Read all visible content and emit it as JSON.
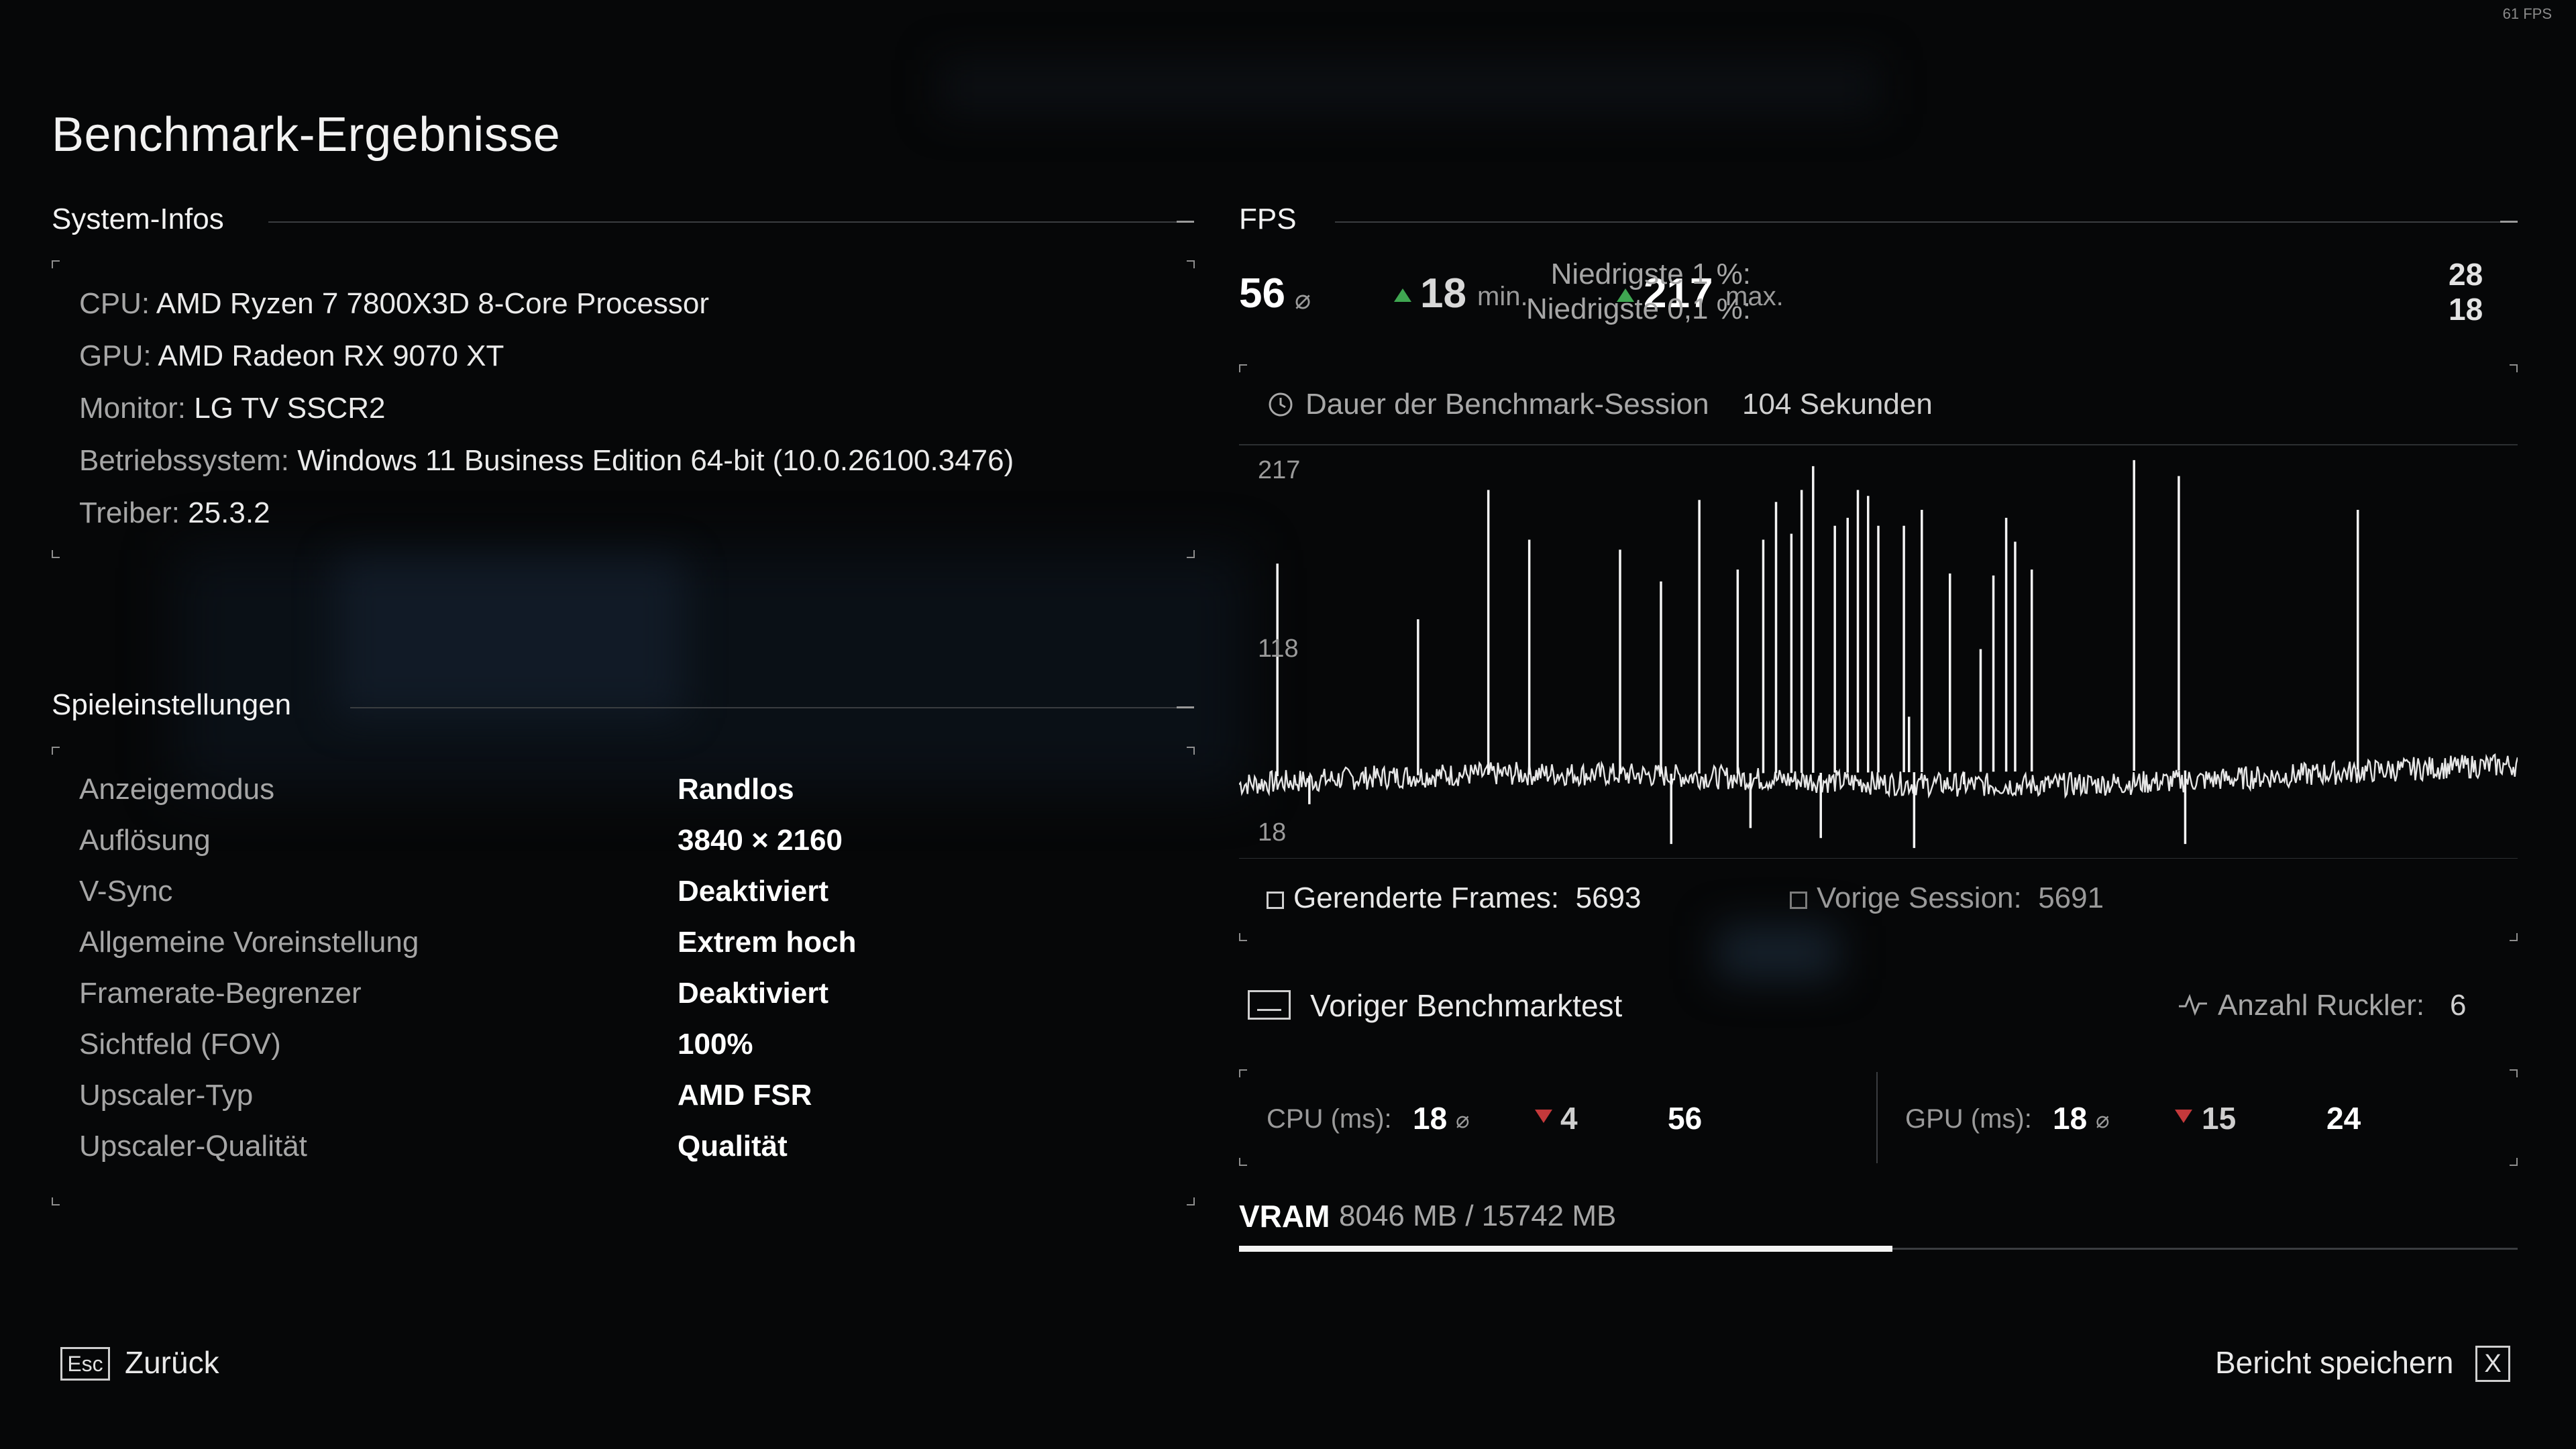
{
  "overlay": {
    "fps_counter": "61 FPS"
  },
  "title": "Benchmark-Ergebnisse",
  "system": {
    "heading": "System-Infos",
    "items": [
      {
        "label": "CPU:",
        "value": "AMD Ryzen 7 7800X3D 8-Core Processor"
      },
      {
        "label": "GPU:",
        "value": "AMD Radeon RX 9070 XT"
      },
      {
        "label": "Monitor:",
        "value": "LG TV SSCR2"
      },
      {
        "label": "Betriebssystem:",
        "value": "Windows 11 Business Edition 64-bit (10.0.26100.3476)"
      },
      {
        "label": "Treiber:",
        "value": "25.3.2"
      }
    ]
  },
  "settings": {
    "heading": "Spieleinstellungen",
    "items": [
      {
        "label": "Anzeigemodus",
        "value": "Randlos"
      },
      {
        "label": "Auflösung",
        "value": "3840 × 2160"
      },
      {
        "label": "V-Sync",
        "value": "Deaktiviert"
      },
      {
        "label": "Allgemeine Voreinstellung",
        "value": "Extrem hoch"
      },
      {
        "label": "Framerate-Begrenzer",
        "value": "Deaktiviert"
      },
      {
        "label": "Sichtfeld (FOV)",
        "value": "100%"
      },
      {
        "label": "Upscaler-Typ",
        "value": "AMD FSR"
      },
      {
        "label": "Upscaler-Qualität",
        "value": "Qualität"
      }
    ]
  },
  "fps": {
    "heading": "FPS",
    "avg": "56",
    "avg_unit": "⌀",
    "min": "18",
    "min_unit": "min.",
    "max": "217",
    "max_unit": "max.",
    "low1_label": "Niedrigste 1 %:",
    "low1_value": "28",
    "low01_label": "Niedrigste 0,1 %:",
    "low01_value": "18",
    "duration_label": "Dauer der Benchmark-Session",
    "duration_value": "104 Sekunden",
    "rendered_label": "Gerenderte Frames:",
    "rendered_value": "5693",
    "prev_label": "Vorige Session:",
    "prev_value": "5691"
  },
  "chart_data": {
    "type": "line",
    "y_ticks": [
      "217",
      "118",
      "18"
    ],
    "ylim": [
      18,
      217
    ],
    "baseline_fps": 56,
    "spikes": [
      {
        "x": 0.03,
        "y": 163
      },
      {
        "x": 0.055,
        "y": 42
      },
      {
        "x": 0.14,
        "y": 135
      },
      {
        "x": 0.195,
        "y": 200
      },
      {
        "x": 0.227,
        "y": 175
      },
      {
        "x": 0.298,
        "y": 170
      },
      {
        "x": 0.33,
        "y": 154
      },
      {
        "x": 0.338,
        "y": 22
      },
      {
        "x": 0.36,
        "y": 195
      },
      {
        "x": 0.39,
        "y": 160
      },
      {
        "x": 0.4,
        "y": 30
      },
      {
        "x": 0.41,
        "y": 175
      },
      {
        "x": 0.42,
        "y": 194
      },
      {
        "x": 0.432,
        "y": 178
      },
      {
        "x": 0.44,
        "y": 200
      },
      {
        "x": 0.449,
        "y": 212
      },
      {
        "x": 0.455,
        "y": 25
      },
      {
        "x": 0.466,
        "y": 182
      },
      {
        "x": 0.476,
        "y": 186
      },
      {
        "x": 0.484,
        "y": 200
      },
      {
        "x": 0.492,
        "y": 197
      },
      {
        "x": 0.5,
        "y": 182
      },
      {
        "x": 0.52,
        "y": 182
      },
      {
        "x": 0.528,
        "y": 20
      },
      {
        "x": 0.534,
        "y": 190
      },
      {
        "x": 0.556,
        "y": 158
      },
      {
        "x": 0.567,
        "y": 52
      },
      {
        "x": 0.524,
        "y": 86
      },
      {
        "x": 0.58,
        "y": 120
      },
      {
        "x": 0.59,
        "y": 157
      },
      {
        "x": 0.6,
        "y": 186
      },
      {
        "x": 0.607,
        "y": 174
      },
      {
        "x": 0.62,
        "y": 160
      },
      {
        "x": 0.7,
        "y": 215
      },
      {
        "x": 0.735,
        "y": 207
      },
      {
        "x": 0.74,
        "y": 22
      },
      {
        "x": 0.875,
        "y": 190
      }
    ]
  },
  "previous": {
    "label": "Voriger Benchmarktest",
    "stutter_label": "Anzahl Ruckler:",
    "stutter_value": "6"
  },
  "frametimes": {
    "cpu_label": "CPU (ms):",
    "cpu_avg": "18",
    "cpu_unit": "⌀",
    "cpu_min": "4",
    "cpu_max": "56",
    "gpu_label": "GPU (ms):",
    "gpu_avg": "18",
    "gpu_unit": "⌀",
    "gpu_min": "15",
    "gpu_max": "24"
  },
  "vram": {
    "label": "VRAM",
    "value": "8046 MB / 15742 MB",
    "used_mb": 8046,
    "total_mb": 15742
  },
  "footer": {
    "back_key": "Esc",
    "back_label": "Zurück",
    "save_label": "Bericht speichern",
    "save_key": "X"
  },
  "colors": {
    "up": "#3fa651",
    "down": "#c4393b",
    "accent": "#f4f4f4"
  }
}
